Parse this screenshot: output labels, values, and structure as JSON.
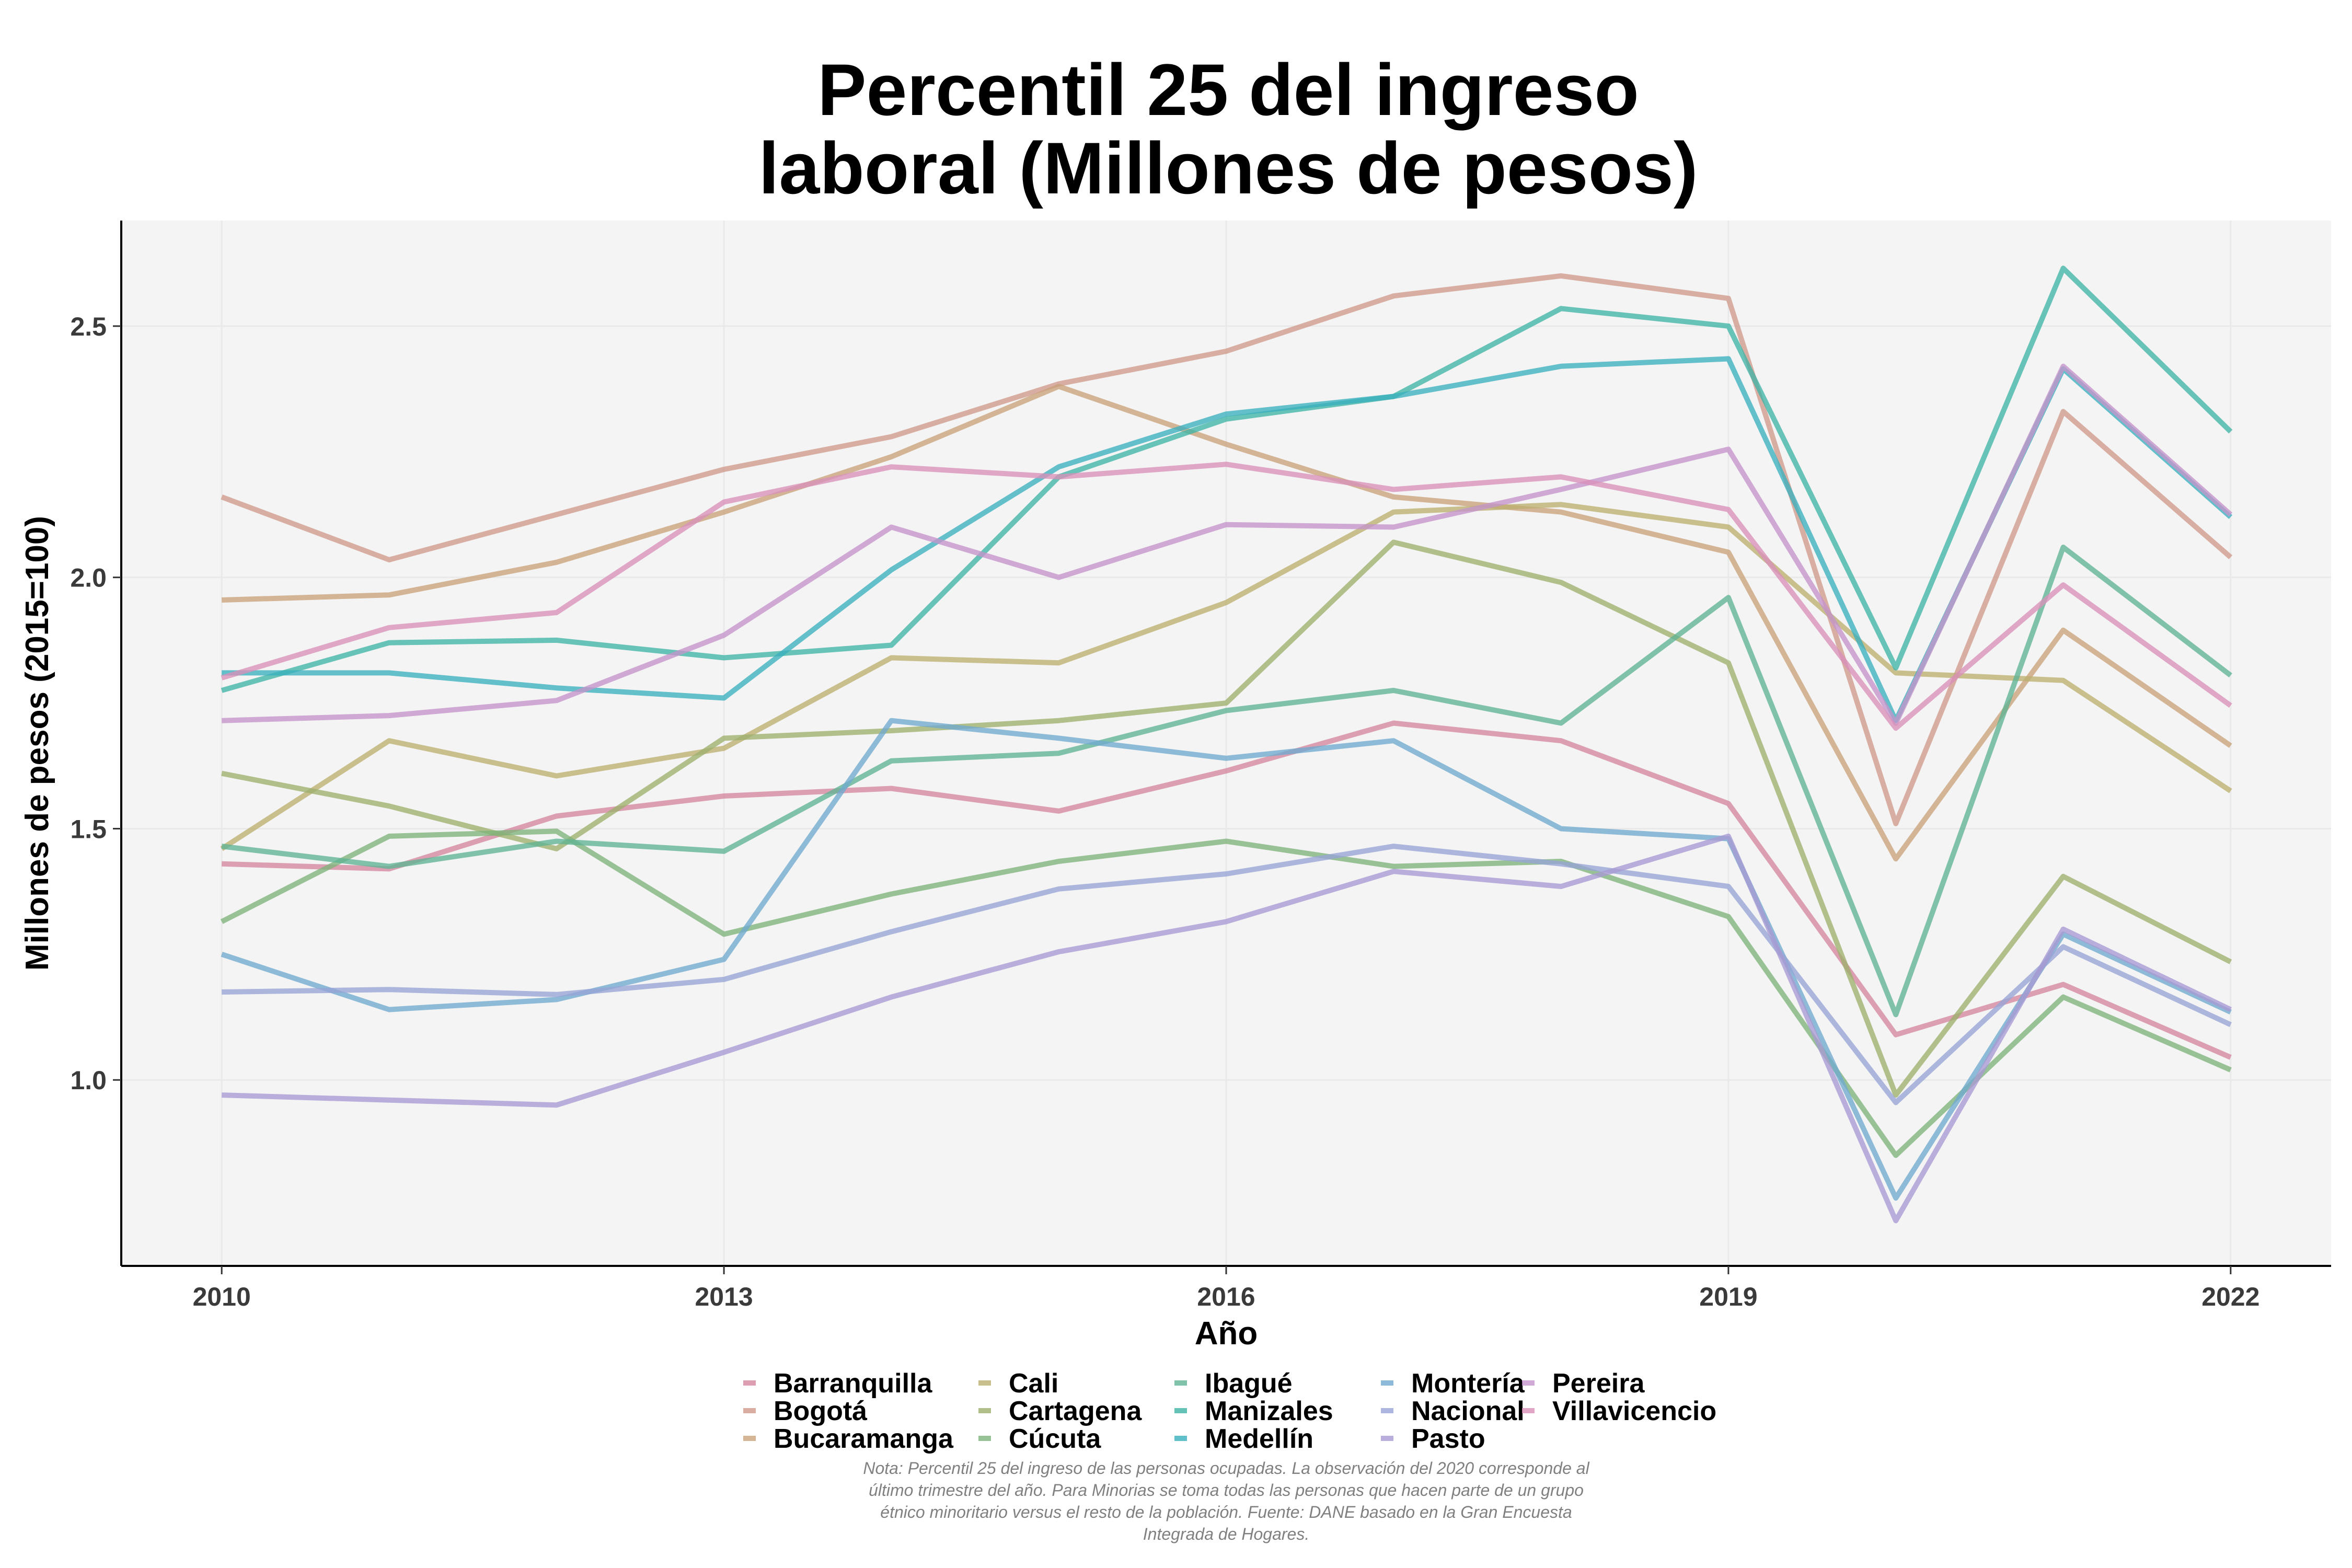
{
  "chart_data": {
    "type": "line",
    "title": [
      "Percentil 25 del ingreso",
      "laboral (Millones de pesos)"
    ],
    "xlabel": "Año",
    "ylabel": "Millones de pesos (2015=100)",
    "x": [
      2010,
      2011,
      2012,
      2013,
      2014,
      2015,
      2016,
      2017,
      2018,
      2019,
      2020,
      2021,
      2022
    ],
    "xlim": [
      2009.4,
      2022.6
    ],
    "ylim": [
      0.63,
      2.71
    ],
    "xticks": [
      2010,
      2013,
      2016,
      2019,
      2022
    ],
    "yticks": [
      1.0,
      1.5,
      2.0,
      2.5
    ],
    "ytick_labels": [
      "1.0",
      "1.5",
      "2.0",
      "2.5"
    ],
    "grid": true,
    "legend_position": "bottom",
    "series": [
      {
        "name": "Barranquilla",
        "color": "#D4869D",
        "values": [
          1.43,
          1.42,
          1.525,
          1.565,
          1.58,
          1.535,
          1.615,
          1.71,
          1.675,
          1.55,
          1.09,
          1.19,
          1.045
        ]
      },
      {
        "name": "Bogotá",
        "color": "#D09A8A",
        "values": [
          2.16,
          2.035,
          2.125,
          2.215,
          2.28,
          2.385,
          2.45,
          2.56,
          2.6,
          2.555,
          1.51,
          2.33,
          2.04
        ]
      },
      {
        "name": "Bucaramanga",
        "color": "#C9A27A",
        "values": [
          1.955,
          1.965,
          2.03,
          2.13,
          2.24,
          2.38,
          2.265,
          2.16,
          2.13,
          2.05,
          1.44,
          1.895,
          1.665
        ]
      },
      {
        "name": "Cali",
        "color": "#BCAF70",
        "values": [
          1.46,
          1.675,
          1.605,
          1.66,
          1.84,
          1.83,
          1.95,
          2.13,
          2.145,
          2.1,
          1.81,
          1.795,
          1.575
        ]
      },
      {
        "name": "Cartagena",
        "color": "#9DB06D",
        "values": [
          1.61,
          1.545,
          1.46,
          1.68,
          1.695,
          1.715,
          1.75,
          2.07,
          1.99,
          1.83,
          0.97,
          1.405,
          1.235
        ]
      },
      {
        "name": "Cúcuta",
        "color": "#7DB37A",
        "values": [
          1.315,
          1.485,
          1.495,
          1.29,
          1.37,
          1.435,
          1.475,
          1.425,
          1.435,
          1.325,
          0.85,
          1.165,
          1.02
        ]
      },
      {
        "name": "Ibagué",
        "color": "#5FB394",
        "values": [
          1.465,
          1.425,
          1.475,
          1.455,
          1.635,
          1.65,
          1.735,
          1.775,
          1.71,
          1.96,
          1.13,
          2.06,
          1.805
        ]
      },
      {
        "name": "Manizales",
        "color": "#3FB3A5",
        "values": [
          1.775,
          1.87,
          1.875,
          1.84,
          1.865,
          2.2,
          2.315,
          2.36,
          2.535,
          2.5,
          1.82,
          2.615,
          2.29
        ]
      },
      {
        "name": "Medellín",
        "color": "#3AAFBE",
        "values": [
          1.81,
          1.81,
          1.78,
          1.76,
          2.015,
          2.22,
          2.325,
          2.36,
          2.42,
          2.435,
          1.715,
          2.415,
          2.12
        ]
      },
      {
        "name": "Montería",
        "color": "#6FA9CE",
        "values": [
          1.25,
          1.14,
          1.16,
          1.24,
          1.715,
          1.68,
          1.64,
          1.675,
          1.5,
          1.48,
          0.765,
          1.29,
          1.135
        ]
      },
      {
        "name": "Nacional",
        "color": "#97A4D6",
        "values": [
          1.175,
          1.18,
          1.17,
          1.2,
          1.295,
          1.38,
          1.41,
          1.465,
          1.43,
          1.385,
          0.955,
          1.265,
          1.11
        ]
      },
      {
        "name": "Pasto",
        "color": "#A89AD3",
        "values": [
          0.97,
          0.96,
          0.95,
          1.055,
          1.165,
          1.255,
          1.315,
          1.415,
          1.385,
          1.485,
          0.72,
          1.3,
          1.14
        ]
      },
      {
        "name": "Pereira",
        "color": "#C493CB",
        "values": [
          1.715,
          1.725,
          1.755,
          1.885,
          2.1,
          2.0,
          2.105,
          2.1,
          2.175,
          2.255,
          1.71,
          2.42,
          2.125
        ]
      },
      {
        "name": "Villavicencio",
        "color": "#D98FB8",
        "values": [
          1.8,
          1.9,
          1.93,
          2.15,
          2.22,
          2.2,
          2.225,
          2.175,
          2.2,
          2.135,
          1.7,
          1.985,
          1.745
        ]
      }
    ],
    "note": [
      "Nota: Percentil 25 del ingreso de las personas ocupadas. La observación del 2020 corresponde al",
      "último trimestre del año. Para Minorias se toma todas las personas que hacen parte de un grupo",
      "étnico minoritario versus el resto de la población. Fuente: DANE basado en la Gran Encuesta",
      "Integrada de Hogares."
    ]
  }
}
